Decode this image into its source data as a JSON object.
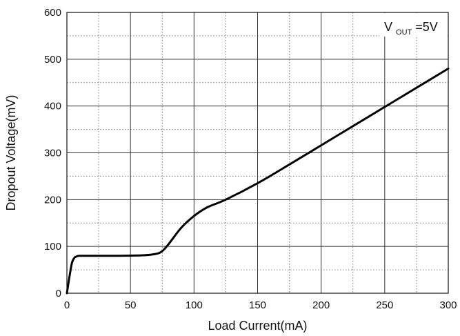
{
  "chart_data": {
    "type": "line",
    "xlabel": "Load Current(mA)",
    "ylabel": "Dropout Voltage(mV)",
    "xlim": [
      0,
      300
    ],
    "ylim": [
      0,
      600
    ],
    "x_ticks": [
      0,
      50,
      100,
      150,
      200,
      250,
      300
    ],
    "y_ticks": [
      0,
      100,
      200,
      300,
      400,
      500,
      600
    ],
    "x_tick_labels": [
      "0",
      "50",
      "100",
      "150",
      "200",
      "250",
      "300"
    ],
    "y_tick_labels": [
      "0",
      "100",
      "200",
      "300",
      "400",
      "500",
      "600"
    ],
    "grid": {
      "major": "solid",
      "minor": "dotted",
      "x_minor_step": 25,
      "y_minor_step": 50
    },
    "annotation": {
      "main": "V",
      "subscript": "OUT",
      "suffix": "=5V",
      "placement": "top-right"
    },
    "series": [
      {
        "color": "#000000",
        "x": [
          0,
          2,
          4,
          6,
          8,
          10,
          20,
          40,
          60,
          70,
          75,
          80,
          90,
          100,
          110,
          125,
          150,
          175,
          200,
          225,
          250,
          275,
          300
        ],
        "y": [
          0,
          35,
          65,
          76,
          79,
          80,
          80,
          80,
          81,
          84,
          90,
          105,
          140,
          165,
          183,
          200,
          235,
          275,
          316,
          357,
          398,
          439,
          480
        ]
      }
    ]
  }
}
